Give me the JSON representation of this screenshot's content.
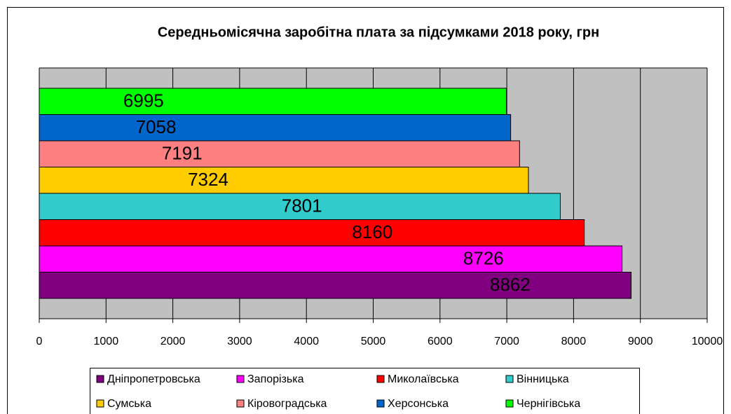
{
  "chart_data": {
    "type": "bar",
    "orientation": "horizontal",
    "title": "Середньомісячна заробітна плата за підсумками 2018 року, грн",
    "series": [
      {
        "name": "Дніпропетровська",
        "color": "#800080",
        "values": [
          8862
        ]
      },
      {
        "name": "Запорізька",
        "color": "#ff00ff",
        "values": [
          8726
        ]
      },
      {
        "name": "Миколаївська",
        "color": "#ff0000",
        "values": [
          8160
        ]
      },
      {
        "name": "Вінницька",
        "color": "#33cccc",
        "values": [
          7801
        ]
      },
      {
        "name": "Сумська",
        "color": "#ffcc00",
        "values": [
          7324
        ]
      },
      {
        "name": "Кіровоградська",
        "color": "#ff8080",
        "values": [
          7191
        ]
      },
      {
        "name": "Херсонська",
        "color": "#0066cc",
        "values": [
          7058
        ]
      },
      {
        "name": "Чернігівська",
        "color": "#00ff00",
        "values": [
          6995
        ]
      }
    ],
    "xlim": [
      0,
      10000
    ],
    "xticks": [
      0,
      1000,
      2000,
      3000,
      4000,
      5000,
      6000,
      7000,
      8000,
      9000,
      10000
    ],
    "grid": true,
    "legend": "bottom",
    "plot_background": "#c0c0c0"
  }
}
